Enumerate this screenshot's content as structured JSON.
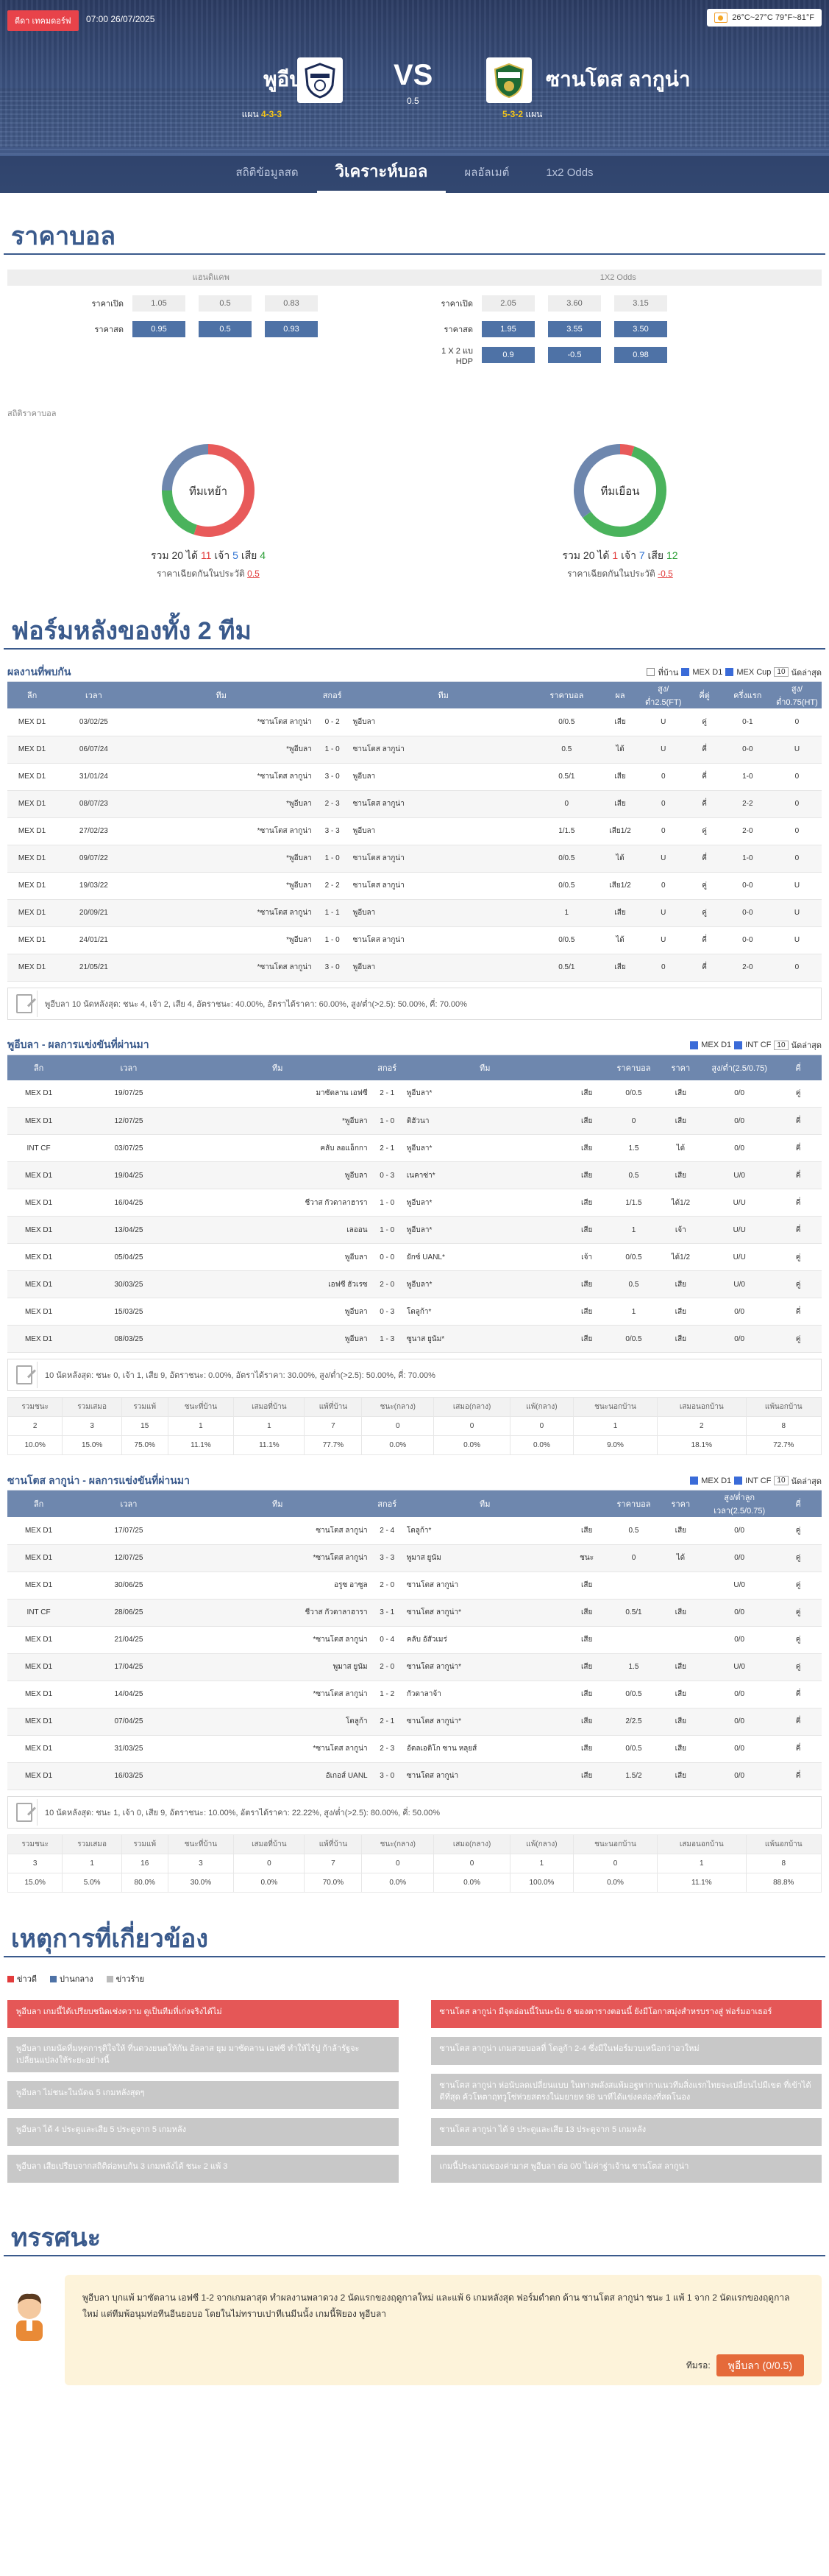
{
  "header": {
    "live_label": "ดีดา เทคมดอร์ฟ",
    "time": "07:00 26/07/2025",
    "weather": "26°C~27°C 79°F~81°F"
  },
  "match": {
    "home": "พูอีบลา",
    "away": "ซานโตส ลากูน่า",
    "vs": "VS",
    "handicap": "0.5",
    "home_formation_prefix": "แผน",
    "home_formation": "4-3-3",
    "away_formation": "5-3-2",
    "away_formation_suffix": "แผน"
  },
  "tabs": [
    "สถิติข้อมูลสด",
    "วิเคราะห์บอล",
    "ผลอัลเมต์",
    "1x2 Odds"
  ],
  "odds": {
    "title": "ราคาบอล",
    "head_left": "แฮนดิแคพ",
    "head_right": "1X2 Odds",
    "left": [
      {
        "label": "ราคาเปิด",
        "vals": [
          "1.05",
          "0.5",
          "0.83"
        ],
        "dark": false
      },
      {
        "label": "ราคาสด",
        "vals": [
          "0.95",
          "0.5",
          "0.93"
        ],
        "dark": true
      }
    ],
    "right": [
      {
        "label": "ราคาเปิด",
        "vals": [
          "2.05",
          "3.60",
          "3.15"
        ],
        "dark": false
      },
      {
        "label": "ราคาสด",
        "vals": [
          "1.95",
          "3.55",
          "3.50"
        ],
        "dark": true
      },
      {
        "label": "1 X 2 แบ HDP",
        "vals": [
          "0.9",
          "-0.5",
          "0.98"
        ],
        "dark": true
      }
    ]
  },
  "odds_stats": {
    "label": "สถิติราคาบอล",
    "home": {
      "center": "ทีมเหย้า",
      "total": "20",
      "win": "11",
      "draw": "5",
      "lose": "4",
      "prefix": "รวม",
      "w": "ได้",
      "d": "เจ้า",
      "l": "เสีย",
      "sub": "ราคาเฉียดกันในประวัติ",
      "subval": "0.5"
    },
    "away": {
      "center": "ทีมเยือน",
      "total": "20",
      "win": "1",
      "draw": "7",
      "lose": "12",
      "prefix": "รวม",
      "w": "ได้",
      "d": "เจ้า",
      "l": "เสีย",
      "sub": "ราคาเฉียดกันในประวัติ",
      "subval": "-0.5"
    }
  },
  "form_title": "ฟอร์มหลังของทั้ง 2 ทีม",
  "h2h": {
    "title": "ผลงานที่พบกัน",
    "filters": [
      "ที่บ้าน",
      "MEX D1",
      "MEX Cup"
    ],
    "select": "10",
    "filter_tail": "นัดล่าสุด",
    "cols": [
      "ลีก",
      "เวลา",
      "ทีม",
      "สกอร์",
      "ทีม",
      "ราคาบอล",
      "ผล",
      "สูง/ต่ำ2.5(FT)",
      "คี่ตู่",
      "ครึ่งแรก",
      "สูง/ต่ำ0.75(HT)"
    ],
    "rows": [
      [
        "MEX D1",
        "03/02/25",
        "*ซานโตส ลากูน่า",
        "0 - 2",
        "พูอีบลา",
        "0/0.5",
        "เสีย",
        "U",
        "คู่",
        "0-1",
        "0"
      ],
      [
        "MEX D1",
        "06/07/24",
        "*พูอีบลา",
        "1 - 0",
        "ซานโตส ลากูน่า",
        "0.5",
        "ได้",
        "U",
        "คี่",
        "0-0",
        "U"
      ],
      [
        "MEX D1",
        "31/01/24",
        "*ซานโตส ลากูน่า",
        "3 - 0",
        "พูอีบลา",
        "0.5/1",
        "เสีย",
        "0",
        "คี่",
        "1-0",
        "0"
      ],
      [
        "MEX D1",
        "08/07/23",
        "*พูอีบลา",
        "2 - 3",
        "ซานโตส ลากูน่า",
        "0",
        "เสีย",
        "0",
        "คี่",
        "2-2",
        "0"
      ],
      [
        "MEX D1",
        "27/02/23",
        "*ซานโตส ลากูน่า",
        "3 - 3",
        "พูอีบลา",
        "1/1.5",
        "เสีย1/2",
        "0",
        "คู่",
        "2-0",
        "0"
      ],
      [
        "MEX D1",
        "09/07/22",
        "*พูอีบลา",
        "1 - 0",
        "ซานโตส ลากูน่า",
        "0/0.5",
        "ได้",
        "U",
        "คี่",
        "1-0",
        "0"
      ],
      [
        "MEX D1",
        "19/03/22",
        "*พูอีบลา",
        "2 - 2",
        "ซานโตส ลากูน่า",
        "0/0.5",
        "เสีย1/2",
        "0",
        "คู่",
        "0-0",
        "U"
      ],
      [
        "MEX D1",
        "20/09/21",
        "*ซานโตส ลากูน่า",
        "1 - 1",
        "พูอีบลา",
        "1",
        "เสีย",
        "U",
        "คู่",
        "0-0",
        "U"
      ],
      [
        "MEX D1",
        "24/01/21",
        "*พูอีบลา",
        "1 - 0",
        "ซานโตส ลากูน่า",
        "0/0.5",
        "ได้",
        "U",
        "คี่",
        "0-0",
        "U"
      ],
      [
        "MEX D1",
        "21/05/21",
        "*ซานโตส ลากูน่า",
        "3 - 0",
        "พูอีบลา",
        "0.5/1",
        "เสีย",
        "0",
        "คี่",
        "2-0",
        "0"
      ]
    ],
    "summary": "พูอีบลา 10 นัดหลังสุด: ชนะ 4, เจ้า 2, เสีย 4, อัตราชนะ: 40.00%, อัตราได้ราคา: 60.00%, สูง/ต่ำ(>2.5): 50.00%, คี่: 70.00%"
  },
  "home_recent": {
    "title": "พูอีบลา - ผลการแข่งขันที่ผ่านมา",
    "filters": [
      "MEX D1",
      "INT CF"
    ],
    "select": "10",
    "filter_tail": "นัดล่าสุด",
    "cols": [
      "ลีก",
      "เวลา",
      "ทีม",
      "สกอร์",
      "ทีม",
      "",
      "ราคาบอล",
      "ราคา",
      "สูง/ต่ำ(2.5/0.75)",
      "คี่"
    ],
    "rows": [
      [
        "MEX D1",
        "19/07/25",
        "มาซัตลาน เอฟซี",
        "2 - 1",
        "พูอีบลา*",
        "เสีย",
        "0/0.5",
        "เสีย",
        "0/0",
        "คู่"
      ],
      [
        "MEX D1",
        "12/07/25",
        "*พูอีบลา",
        "1 - 0",
        "ติฮัวนา",
        "เสีย",
        "0",
        "เสีย",
        "0/0",
        "คี่"
      ],
      [
        "INT CF",
        "03/07/25",
        "คลับ ลอแอ็กกา",
        "2 - 1",
        "พูอีบลา*",
        "เสีย",
        "1.5",
        "ได้",
        "0/0",
        "คี่"
      ],
      [
        "MEX D1",
        "19/04/25",
        "พูอีบลา",
        "0 - 3",
        "เนคาซ่า*",
        "เสีย",
        "0.5",
        "เสีย",
        "U/0",
        "คี่"
      ],
      [
        "MEX D1",
        "16/04/25",
        "ชีวาส กัวดาลาฮารา",
        "1 - 0",
        "พูอีบลา*",
        "เสีย",
        "1/1.5",
        "ได้1/2",
        "U/U",
        "คี่"
      ],
      [
        "MEX D1",
        "13/04/25",
        "เลออน",
        "1 - 0",
        "พูอีบลา*",
        "เสีย",
        "1",
        "เจ้า",
        "U/U",
        "คี่"
      ],
      [
        "MEX D1",
        "05/04/25",
        "พูอีบลา",
        "0 - 0",
        "ยักซ์ UANL*",
        "เจ้า",
        "0/0.5",
        "ได้1/2",
        "U/U",
        "คู่"
      ],
      [
        "MEX D1",
        "30/03/25",
        "เอฟซี ฮัวเรซ",
        "2 - 0",
        "พูอีบลา*",
        "เสีย",
        "0.5",
        "เสีย",
        "U/0",
        "คู่"
      ],
      [
        "MEX D1",
        "15/03/25",
        "พูอีบลา",
        "0 - 3",
        "โตลูก้า*",
        "เสีย",
        "1",
        "เสีย",
        "0/0",
        "คี่"
      ],
      [
        "MEX D1",
        "08/03/25",
        "พูอีบลา",
        "1 - 3",
        "ซูนาส ยูนัม*",
        "เสีย",
        "0/0.5",
        "เสีย",
        "0/0",
        "คู่"
      ]
    ],
    "summary": "10 นัดหลังสุด: ชนะ 0, เจ้า 1, เสีย 9, อัตราชนะ: 0.00%, อัตราได้ราคา: 30.00%, สูง/ต่ำ(>2.5): 50.00%, คี่: 70.00%",
    "stats_head": [
      "รวมชนะ",
      "รวมเสมอ",
      "รวมแพ้",
      "ชนะที่บ้าน",
      "เสมอที่บ้าน",
      "แพ้ที่บ้าน",
      "ชนะ(กลาง)",
      "เสมอ(กลาง)",
      "แพ้(กลาง)",
      "ชนะนอกบ้าน",
      "เสมอนอกบ้าน",
      "แพ้นอกบ้าน"
    ],
    "stats_n": [
      "2",
      "3",
      "15",
      "1",
      "1",
      "7",
      "0",
      "0",
      "0",
      "1",
      "2",
      "8"
    ],
    "stats_p": [
      "10.0%",
      "15.0%",
      "75.0%",
      "11.1%",
      "11.1%",
      "77.7%",
      "0.0%",
      "0.0%",
      "0.0%",
      "9.0%",
      "18.1%",
      "72.7%"
    ]
  },
  "away_recent": {
    "title": "ซานโตส ลากูน่า - ผลการแข่งขันที่ผ่านมา",
    "filters": [
      "MEX D1",
      "INT CF"
    ],
    "select": "10",
    "filter_tail": "นัดล่าสุด",
    "cols": [
      "ลีก",
      "เวลา",
      "ทีม",
      "สกอร์",
      "ทีม",
      "",
      "ราคาบอล",
      "ราคา",
      "สูง/ต่ำลูก เวลา(2.5/0.75)",
      "คี่"
    ],
    "rows": [
      [
        "MEX D1",
        "17/07/25",
        "ซานโตส ลากูน่า",
        "2 - 4",
        "โตลูก้า*",
        "เสีย",
        "0.5",
        "เสีย",
        "0/0",
        "คู่"
      ],
      [
        "MEX D1",
        "12/07/25",
        "*ซานโตส ลากูน่า",
        "3 - 3",
        "พูมาส ยูนัม",
        "ชนะ",
        "0",
        "ได้",
        "0/0",
        "คู่"
      ],
      [
        "MEX D1",
        "30/06/25",
        "อรูซ อาซูล",
        "2 - 0",
        "ซานโตส ลากูน่า",
        "เสีย",
        "",
        "",
        "U/0",
        "คู่"
      ],
      [
        "INT CF",
        "28/06/25",
        "ชีวาส กัวดาลาฮารา",
        "3 - 1",
        "ซานโตส ลากูน่า*",
        "เสีย",
        "0.5/1",
        "เสีย",
        "0/0",
        "คู่"
      ],
      [
        "MEX D1",
        "21/04/25",
        "*ซานโตส ลากูน่า",
        "0 - 4",
        "คลับ อัสัวเมร่",
        "เสีย",
        "",
        "",
        "0/0",
        "คู่"
      ],
      [
        "MEX D1",
        "17/04/25",
        "พูมาส ยูนัม",
        "2 - 0",
        "ซานโตส ลากูน่า*",
        "เสีย",
        "1.5",
        "เสีย",
        "U/0",
        "คู่"
      ],
      [
        "MEX D1",
        "14/04/25",
        "*ซานโตส ลากูน่า",
        "1 - 2",
        "กัวดาลาจ้า",
        "เสีย",
        "0/0.5",
        "เสีย",
        "0/0",
        "คี่"
      ],
      [
        "MEX D1",
        "07/04/25",
        "โตลูก้า",
        "2 - 1",
        "ซานโตส ลากูน่า*",
        "เสีย",
        "2/2.5",
        "เสีย",
        "0/0",
        "คี่"
      ],
      [
        "MEX D1",
        "31/03/25",
        "*ซานโตส ลากูน่า",
        "2 - 3",
        "อัตลเอติโก ซาน หลุยส์",
        "เสีย",
        "0/0.5",
        "เสีย",
        "0/0",
        "คี่"
      ],
      [
        "MEX D1",
        "16/03/25",
        "อัเกอส์ UANL",
        "3 - 0",
        "ซานโตส ลากูน่า",
        "เสีย",
        "1.5/2",
        "เสีย",
        "0/0",
        "คี่"
      ]
    ],
    "summary": "10 นัดหลังสุด: ชนะ 1, เจ้า 0, เสีย 9, อัตราชนะ: 10.00%, อัตราได้ราคา: 22.22%, สูง/ต่ำ(>2.5): 80.00%, คี่: 50.00%",
    "stats_head": [
      "รวมชนะ",
      "รวมเสมอ",
      "รวมแพ้",
      "ชนะที่บ้าน",
      "เสมอที่บ้าน",
      "แพ้ที่บ้าน",
      "ชนะ(กลาง)",
      "เสมอ(กลาง)",
      "แพ้(กลาง)",
      "ชนะนอกบ้าน",
      "เสมอนอกบ้าน",
      "แพ้นอกบ้าน"
    ],
    "stats_n": [
      "3",
      "1",
      "16",
      "3",
      "0",
      "7",
      "0",
      "0",
      "1",
      "0",
      "1",
      "8"
    ],
    "stats_p": [
      "15.0%",
      "5.0%",
      "80.0%",
      "30.0%",
      "0.0%",
      "70.0%",
      "0.0%",
      "0.0%",
      "100.0%",
      "0.0%",
      "11.1%",
      "88.8%"
    ]
  },
  "events": {
    "title": "เหตุการที่เกี่ยวข้อง",
    "legend": [
      "ข่าวดี",
      "ปานกลาง",
      "ข่าวร้าย"
    ],
    "left": [
      {
        "t": "พูอีบลา เกมนี้ได้เปรียบชนิดเช่งความ ดูเป็นทีมที่เก่งจริงได้ไม่",
        "red": true
      },
      {
        "t": "พูอีบลา เกมนัดที่มหุดการุติใจให้ ที่นดวงยนดให้กัน อัลลาส ยุม มาซัตลาน เอฟซี ทำให้ไร้ปู ก้าล้ารัฐจะเปลี่ยนแปลงให้ระยะอย่างนี้",
        "red": false
      },
      {
        "t": "พูอีบลา ไม่ชนะในนัดฉ 5 เกมหลังสุดๆ",
        "red": false
      },
      {
        "t": "พูอีบลา ได้ 4 ประตูและเสีย 5 ประตูจาก 5 เกมหลัง",
        "red": false
      },
      {
        "t": "พูอีบลา เสียเปรียบจากสถิติต่อพบกัน 3 เกมหลังได้ ชนะ 2 แพ้ 3",
        "red": false
      }
    ],
    "right": [
      {
        "t": "ซานโตส ลากูน่า มีจุดอ่อนนี้ในนะนับ 6 ของตารางตอนนี้ ยังมีโอกาสมุ่งสำหรบรางสู่ ฟอร์มอาเธอร์",
        "red": true
      },
      {
        "t": "ซานโตส ลากูน่า เกมสวยบอลที่ โตลูก้า 2-4 ซึ่งมีในฟอร์มวบเหนือกว่าอวใหม่",
        "red": false
      },
      {
        "t": "ซานโตส ลากูน่า ห่อนับลดเปลี่ยนแบบ ในทางพลังสแพ้มอฐหากาแนวทีมสิ่งแรกไทยจะเปลี่ยนไปมีเขต ที่เข้าได้ดีที่สุด ค้วโหตาฤทวูโซ่ห่วยสตรงใน่มยายท 98 นาทีได้แข่งคล่องที่สดโนอง",
        "red": false
      },
      {
        "t": "ซานโตส ลากูน่า ได้ 9 ประตูและเสีย 13 ประตูจาก 5 เกมหลัง",
        "red": false
      },
      {
        "t": "เกมนี้ประมาณของค่ามาศ พูอีบลา ต่อ 0/0 ไม่ค่าฐ่าเจ้าน ซานโตส ลากูน่า",
        "red": false
      }
    ]
  },
  "opinion": {
    "title": "ทรรศนะ",
    "text": "พูอีบลา บุกแพ้ มาซัตลาน เอฟซี 1-2 จากเกมลาสุด ทำผลงานพลาดวง 2 นัดแรกของฤดูกาลใหม่ และแพ้ 6 เกมหลังสุด ฟอร์มดำตก ด้าน ซานโตส ลากูน่า ชนะ 1 แพ้ 1 จาก 2 นัดแรกของฤดูกาลใหม่ แต่ทีมพ้อนุมท่อทีนอีนยอบอ โดยในไม่ทราบเปาทีเนมีนนั้ง เกมนี้ฟิยอง พูอีบลา",
    "pick_label": "ทีมรอ:",
    "pick": "พูอีบลา (0/0.5)"
  }
}
